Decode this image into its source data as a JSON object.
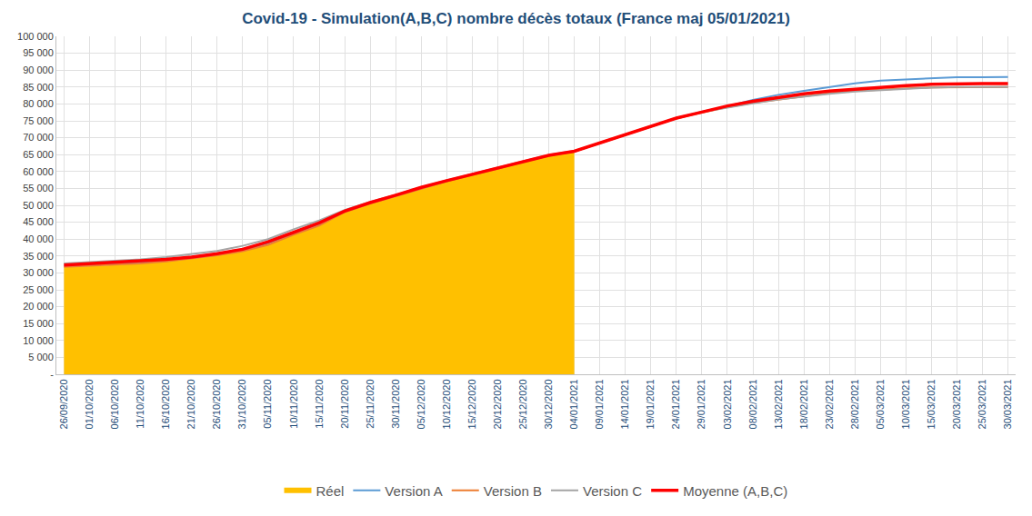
{
  "chart_data": {
    "type": "line",
    "title": "Covid-19 - Simulation(A,B,C) nombre décès totaux (France maj 05/01/2021)",
    "categories": [
      "26/09/2020",
      "01/10/2020",
      "06/10/2020",
      "11/10/2020",
      "16/10/2020",
      "21/10/2020",
      "26/10/2020",
      "31/10/2020",
      "05/11/2020",
      "10/11/2020",
      "15/11/2020",
      "20/11/2020",
      "25/11/2020",
      "30/11/2020",
      "05/12/2020",
      "10/12/2020",
      "15/12/2020",
      "20/12/2020",
      "25/12/2020",
      "30/12/2020",
      "04/01/2021",
      "09/01/2021",
      "14/01/2021",
      "19/01/2021",
      "24/01/2021",
      "29/01/2021",
      "03/02/2021",
      "08/02/2021",
      "13/02/2021",
      "18/02/2021",
      "23/02/2021",
      "28/02/2021",
      "05/03/2021",
      "10/03/2021",
      "15/03/2021",
      "20/03/2021",
      "25/03/2021",
      "30/03/2021"
    ],
    "series": [
      {
        "name": "Réel",
        "type": "area",
        "color": "#ffc000",
        "values": [
          31700,
          32000,
          32300,
          32800,
          33400,
          34200,
          35200,
          36500,
          38500,
          41500,
          44000,
          48000,
          50500,
          52500,
          55000,
          57000,
          59000,
          60800,
          62800,
          64600,
          65800,
          null,
          null,
          null,
          null,
          null,
          null,
          null,
          null,
          null,
          null,
          null,
          null,
          null,
          null,
          null,
          null,
          null
        ]
      },
      {
        "name": "Version A",
        "type": "line",
        "color": "#5b9bd5",
        "values": [
          32100,
          32400,
          32700,
          33100,
          33700,
          34400,
          35400,
          36700,
          38800,
          41700,
          44500,
          48200,
          50700,
          52800,
          55100,
          57200,
          59100,
          60900,
          62900,
          64700,
          65900,
          68400,
          70900,
          73400,
          75700,
          77700,
          79300,
          81200,
          82700,
          83900,
          85100,
          86100,
          86900,
          87200,
          87600,
          87900,
          87900,
          88000
        ]
      },
      {
        "name": "Version B",
        "type": "line",
        "color": "#ed7d31",
        "values": [
          31800,
          32100,
          32400,
          32800,
          33400,
          34200,
          35200,
          36400,
          38300,
          41300,
          44000,
          48000,
          50500,
          52700,
          55000,
          57100,
          59000,
          60800,
          62900,
          64700,
          65900,
          68400,
          70900,
          73400,
          75700,
          77400,
          79000,
          80300,
          81300,
          82400,
          83200,
          83800,
          84100,
          84600,
          84900,
          85000,
          85000,
          85000
        ]
      },
      {
        "name": "Version C",
        "type": "line",
        "color": "#a5a5a5",
        "values": [
          32800,
          33200,
          33600,
          34000,
          34700,
          35500,
          36500,
          38000,
          40000,
          42900,
          45500,
          48600,
          51000,
          53100,
          55400,
          57400,
          59300,
          61100,
          63100,
          64900,
          66100,
          68600,
          71100,
          73600,
          75900,
          77600,
          79000,
          80200,
          81300,
          82200,
          83000,
          83700,
          84100,
          84500,
          84800,
          85000,
          85000,
          85000
        ]
      },
      {
        "name": "Moyenne (A,B,C)",
        "type": "line",
        "color": "#ff0000",
        "values": [
          32300,
          32700,
          33000,
          33400,
          34000,
          34700,
          35700,
          37000,
          39200,
          42000,
          44800,
          48300,
          50800,
          53000,
          55300,
          57300,
          59200,
          61000,
          63000,
          64800,
          66000,
          68500,
          71000,
          73500,
          75800,
          77600,
          79400,
          80800,
          82000,
          83000,
          83800,
          84400,
          84900,
          85400,
          85800,
          86000,
          86000,
          86000
        ]
      }
    ],
    "ylim": [
      0,
      100000
    ],
    "yticks": [
      {
        "value": 0,
        "label": "-"
      },
      {
        "value": 5000,
        "label": "5 000"
      },
      {
        "value": 10000,
        "label": "10 000"
      },
      {
        "value": 15000,
        "label": "15 000"
      },
      {
        "value": 20000,
        "label": "20 000"
      },
      {
        "value": 25000,
        "label": "25 000"
      },
      {
        "value": 30000,
        "label": "30 000"
      },
      {
        "value": 35000,
        "label": "35 000"
      },
      {
        "value": 40000,
        "label": "40 000"
      },
      {
        "value": 45000,
        "label": "45 000"
      },
      {
        "value": 50000,
        "label": "50 000"
      },
      {
        "value": 55000,
        "label": "55 000"
      },
      {
        "value": 60000,
        "label": "60 000"
      },
      {
        "value": 65000,
        "label": "65 000"
      },
      {
        "value": 70000,
        "label": "70 000"
      },
      {
        "value": 75000,
        "label": "75 000"
      },
      {
        "value": 80000,
        "label": "80 000"
      },
      {
        "value": 85000,
        "label": "85 000"
      },
      {
        "value": 90000,
        "label": "90 000"
      },
      {
        "value": 95000,
        "label": "95 000"
      },
      {
        "value": 100000,
        "label": "100 000"
      }
    ],
    "grid": true,
    "legend": "bottom"
  }
}
